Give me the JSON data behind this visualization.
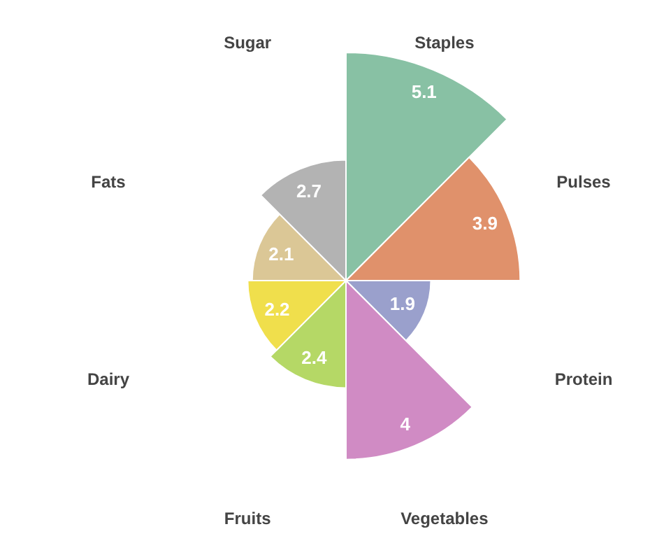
{
  "chart_data": {
    "type": "other",
    "categories": [
      "Staples",
      "Pulses",
      "Protein",
      "Vegetables",
      "Fruits",
      "Dairy",
      "Fats",
      "Sugar"
    ],
    "values": [
      5.1,
      3.9,
      1.9,
      4,
      2.4,
      2.2,
      2.1,
      2.7
    ],
    "colors": [
      "#88c1a4",
      "#e0916b",
      "#9aa0cc",
      "#d08bc4",
      "#b5d866",
      "#f0df4c",
      "#dbc796",
      "#b3b3b3"
    ],
    "data_labels": true
  }
}
